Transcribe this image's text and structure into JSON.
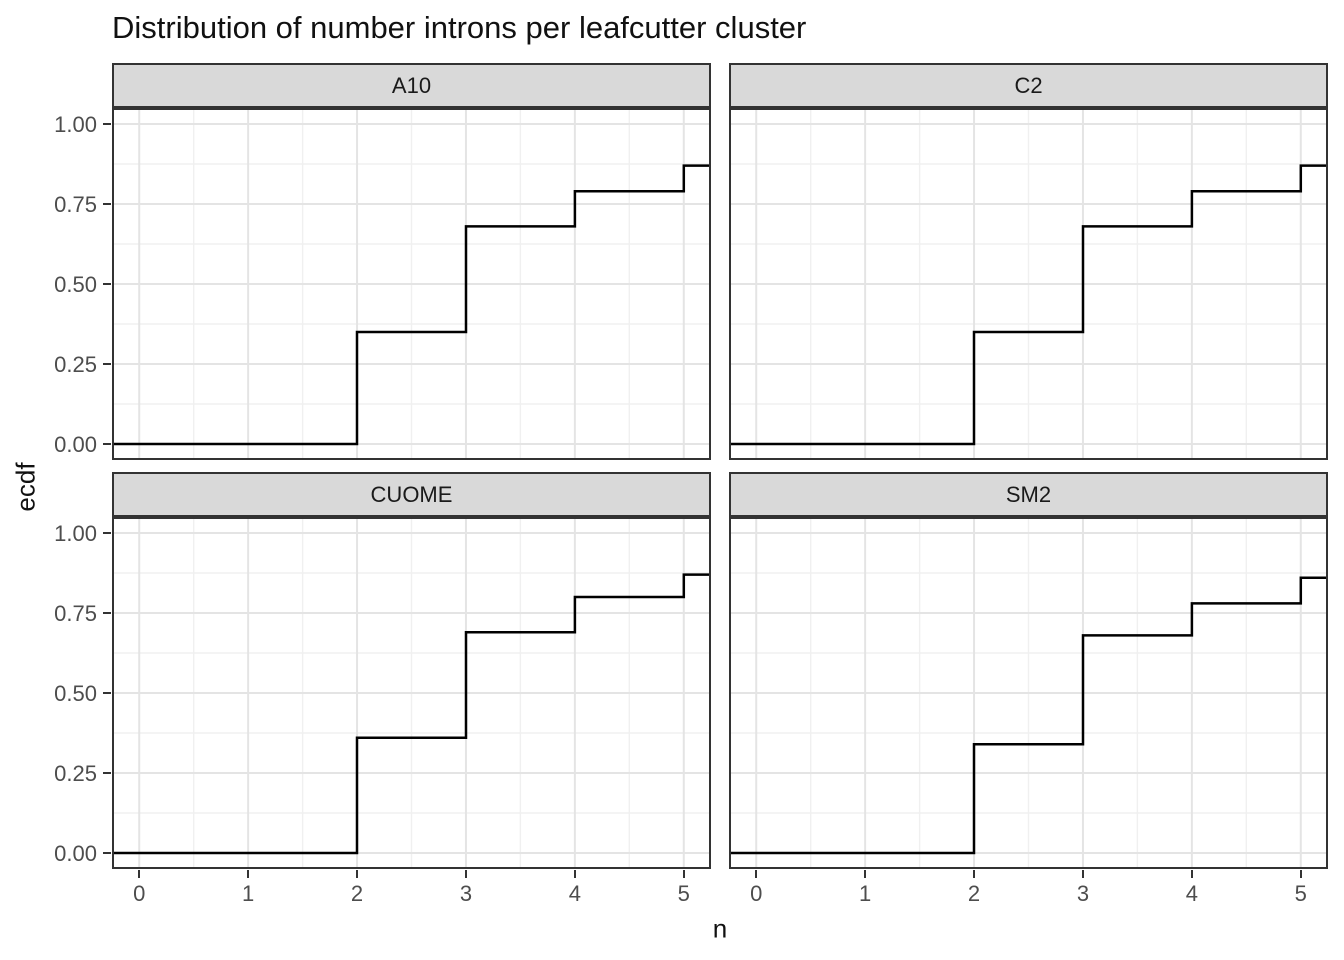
{
  "title": "Distribution of number introns per leafcutter cluster",
  "x_axis": {
    "label": "n",
    "ticks": [
      "0",
      "1",
      "2",
      "3",
      "4",
      "5"
    ]
  },
  "y_axis": {
    "label": "ecdf",
    "ticks": [
      "1.00",
      "0.75",
      "0.50",
      "0.25",
      "0.00"
    ]
  },
  "chart_data": {
    "type": "line",
    "subtype": "step-ecdf",
    "title": "Distribution of number introns per leafcutter cluster",
    "xlabel": "n",
    "ylabel": "ecdf",
    "facet_layout": "2x2 grid",
    "xlim": [
      -0.25,
      5.25
    ],
    "ylim": [
      -0.05,
      1.05
    ],
    "x_major_ticks": [
      0,
      1,
      2,
      3,
      4,
      5
    ],
    "y_major_ticks": [
      1.0,
      0.75,
      0.5,
      0.25,
      0.0
    ],
    "x_minor_ticks": [
      0.5,
      1.5,
      2.5,
      3.5,
      4.5
    ],
    "y_minor_ticks": [
      0.125,
      0.375,
      0.625,
      0.875
    ],
    "grid": "major and minor, light gray on white",
    "line_start_value": 0,
    "facets": [
      {
        "label": "A10",
        "row": 0,
        "col": 0,
        "steps": [
          {
            "x": 2,
            "ecdf": 0.35
          },
          {
            "x": 3,
            "ecdf": 0.68
          },
          {
            "x": 4,
            "ecdf": 0.79
          },
          {
            "x": 5,
            "ecdf": 0.87
          }
        ]
      },
      {
        "label": "C2",
        "row": 0,
        "col": 1,
        "steps": [
          {
            "x": 2,
            "ecdf": 0.35
          },
          {
            "x": 3,
            "ecdf": 0.68
          },
          {
            "x": 4,
            "ecdf": 0.79
          },
          {
            "x": 5,
            "ecdf": 0.87
          }
        ]
      },
      {
        "label": "CUOME",
        "row": 1,
        "col": 0,
        "steps": [
          {
            "x": 2,
            "ecdf": 0.36
          },
          {
            "x": 3,
            "ecdf": 0.69
          },
          {
            "x": 4,
            "ecdf": 0.8
          },
          {
            "x": 5,
            "ecdf": 0.87
          }
        ]
      },
      {
        "label": "SM2",
        "row": 1,
        "col": 1,
        "steps": [
          {
            "x": 2,
            "ecdf": 0.34
          },
          {
            "x": 3,
            "ecdf": 0.68
          },
          {
            "x": 4,
            "ecdf": 0.78
          },
          {
            "x": 5,
            "ecdf": 0.86
          }
        ]
      }
    ]
  },
  "style": {
    "strip_background": "#d9d9d9",
    "panel_border": "#333333",
    "grid_major": "#e4e4e4",
    "grid_minor": "#f0f0f0",
    "ecdf_line": "#000000",
    "tick_mark": "#333333",
    "tick_label": "#4d4d4d",
    "text": "#111111"
  }
}
